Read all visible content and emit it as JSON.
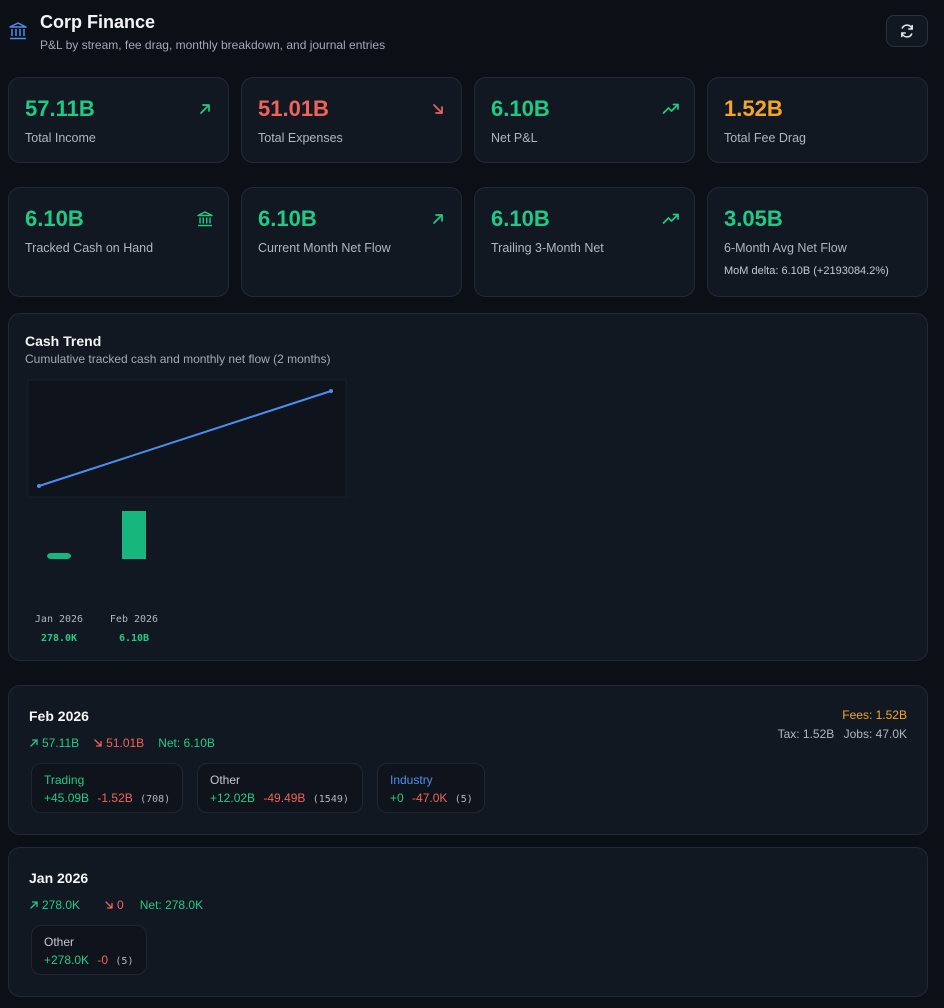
{
  "header": {
    "title": "Corp Finance",
    "subtitle": "P&L by stream, fee drag, monthly breakdown, and journal entries"
  },
  "stats_row1": [
    {
      "value": "57.11B",
      "label": "Total Income",
      "icon": "arrow-up-right-icon",
      "color": "#1ecb86"
    },
    {
      "value": "51.01B",
      "label": "Total Expenses",
      "icon": "arrow-down-right-icon",
      "color": "#f0625a"
    },
    {
      "value": "6.10B",
      "label": "Net P&L",
      "icon": "trending-up-icon",
      "color": "#1ecb86"
    },
    {
      "value": "1.52B",
      "label": "Total Fee Drag",
      "icon": "",
      "color": "#f5a623"
    }
  ],
  "stats_row2": [
    {
      "value": "6.10B",
      "label": "Tracked Cash on Hand",
      "icon": "bank-icon",
      "color": "#1ecb86"
    },
    {
      "value": "6.10B",
      "label": "Current Month Net Flow",
      "icon": "arrow-up-right-icon",
      "color": "#1ecb86"
    },
    {
      "value": "6.10B",
      "label": "Trailing 3-Month Net",
      "icon": "trending-up-icon",
      "color": "#1ecb86"
    },
    {
      "value": "3.05B",
      "label": "6-Month Avg Net Flow",
      "icon": "",
      "color": "#1ecb86",
      "note": "MoM delta: 6.10B (+2193084.2%)"
    }
  ],
  "cash_trend": {
    "title": "Cash Trend",
    "subtitle": "Cumulative tracked cash and monthly net flow (2 months)"
  },
  "chart_data": {
    "type": "line",
    "categories": [
      "Jan 2026",
      "Feb 2026"
    ],
    "value_labels": [
      "278.0K",
      "6.10B"
    ],
    "series": [
      {
        "values": [
          278000,
          6100000000
        ],
        "render": "line",
        "color": "#4c8df0"
      },
      {
        "values": [
          278000,
          6100000000
        ],
        "render": "bar",
        "color": "#17b67c"
      }
    ]
  },
  "months": [
    {
      "title": "Feb 2026",
      "income": "57.11B",
      "expenses": "51.01B",
      "net": "Net: 6.10B",
      "fees": "Fees: 1.52B",
      "tax": "Tax: 1.52B",
      "jobs": "Jobs: 47.0K",
      "streams": [
        {
          "name": "Trading",
          "name_color": "#1ecb86",
          "in": "+45.09B",
          "out": "-1.52B",
          "count": "(708)"
        },
        {
          "name": "Other",
          "name_color": "#c3c9d2",
          "in": "+12.02B",
          "out": "-49.49B",
          "count": "(1549)"
        },
        {
          "name": "Industry",
          "name_color": "#4c8df0",
          "in": "+0",
          "out": "-47.0K",
          "count": "(5)"
        }
      ]
    },
    {
      "title": "Jan 2026",
      "income": "278.0K",
      "expenses": "0",
      "net": "Net: 278.0K",
      "streams": [
        {
          "name": "Other",
          "name_color": "#c3c9d2",
          "in": "+278.0K",
          "out": "-0",
          "count": "(5)"
        }
      ]
    }
  ]
}
